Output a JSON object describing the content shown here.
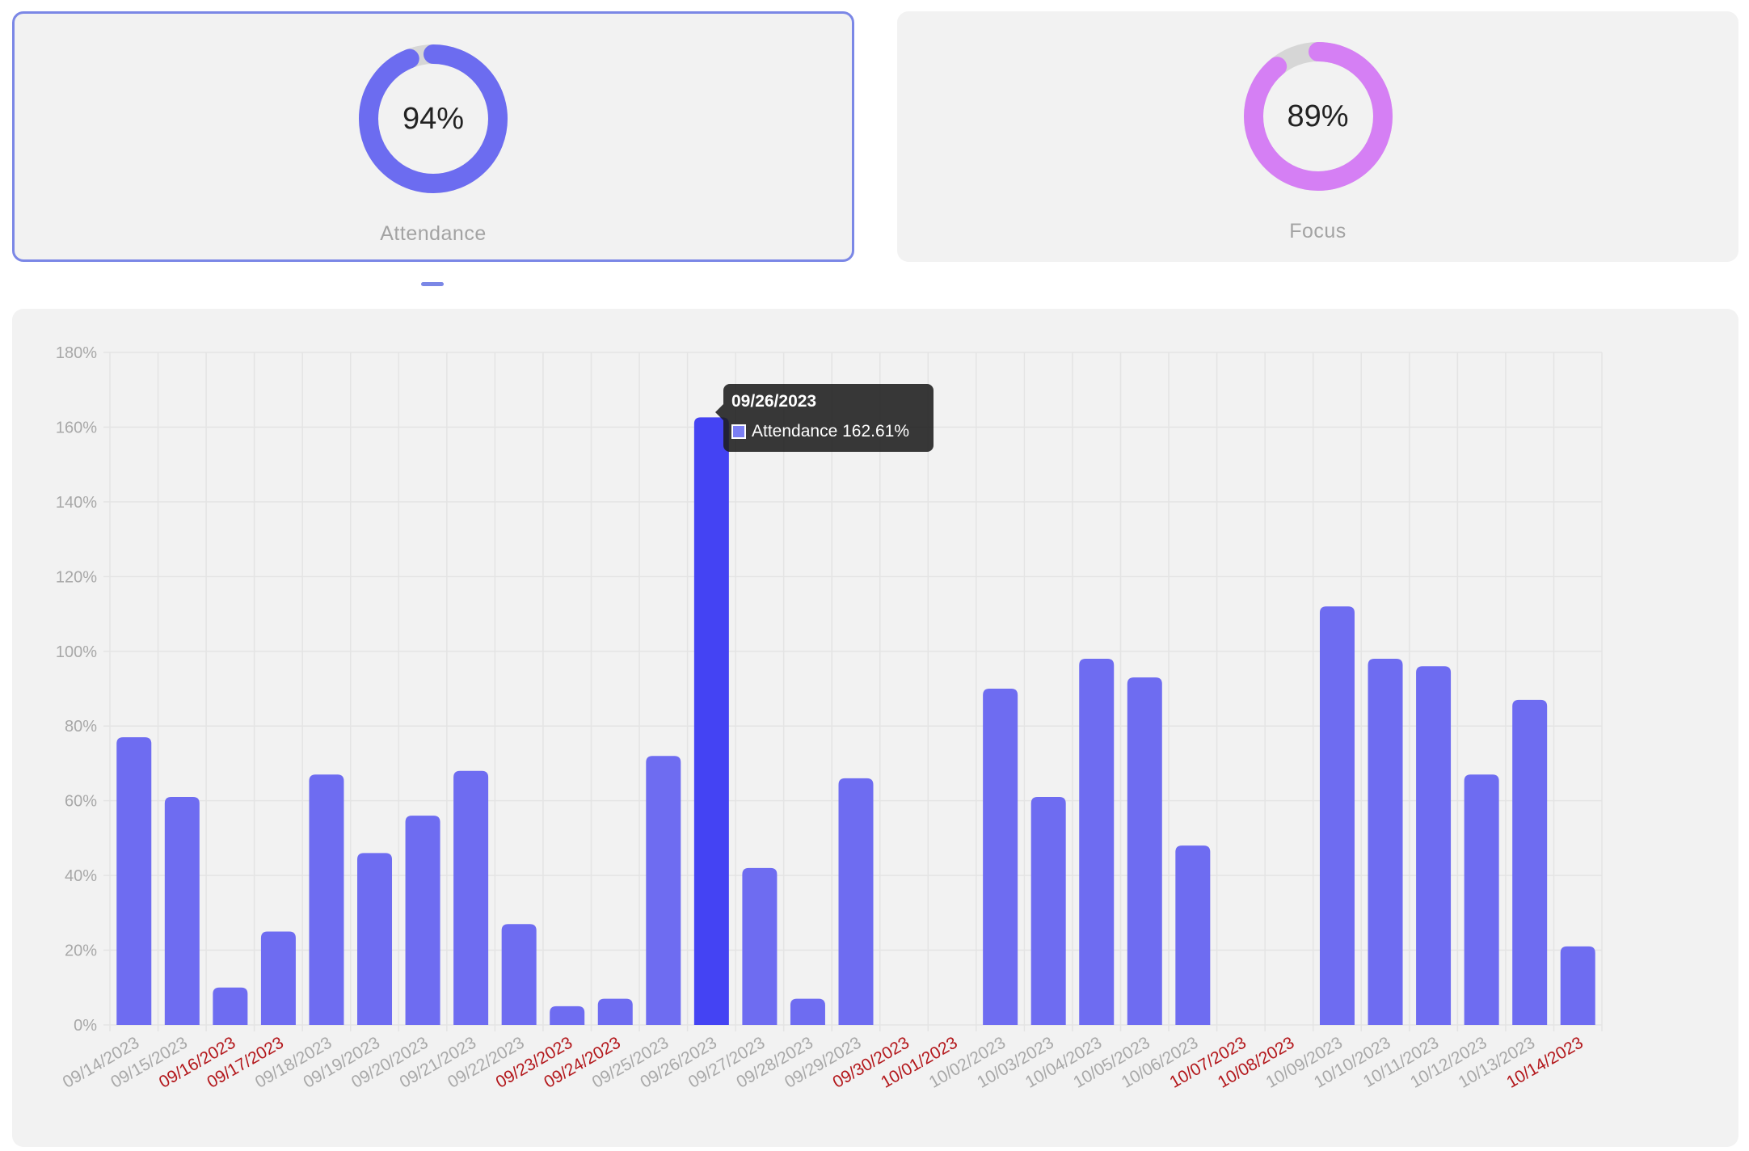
{
  "cards": [
    {
      "label": "Attendance",
      "value_text": "94%",
      "value": 94,
      "color": "#6c6cf0",
      "selected": true
    },
    {
      "label": "Focus",
      "value_text": "89%",
      "value": 89,
      "color": "#d57ff4",
      "selected": false
    }
  ],
  "colors": {
    "bar": "#6e6cf1",
    "bar_active": "#4443f3",
    "weekend_label": "#b3171b",
    "weekday_label": "#a8a8a8",
    "grid": "#e4e4e4",
    "card_bg": "#f2f2f2",
    "selected_border": "#7b87e6"
  },
  "tooltip": {
    "date": "09/26/2023",
    "series": "Attendance",
    "value_text": "162.61%",
    "line": "Attendance 162.61%"
  },
  "chart_data": {
    "type": "bar",
    "ylim": [
      0,
      180
    ],
    "yticks": [
      "0%",
      "20%",
      "40%",
      "60%",
      "80%",
      "100%",
      "120%",
      "140%",
      "160%",
      "180%"
    ],
    "grid": true,
    "legend": "none",
    "highlighted": "09/26/2023",
    "categories": [
      "09/14/2023",
      "09/15/2023",
      "09/16/2023",
      "09/17/2023",
      "09/18/2023",
      "09/19/2023",
      "09/20/2023",
      "09/21/2023",
      "09/22/2023",
      "09/23/2023",
      "09/24/2023",
      "09/25/2023",
      "09/26/2023",
      "09/27/2023",
      "09/28/2023",
      "09/29/2023",
      "09/30/2023",
      "10/01/2023",
      "10/02/2023",
      "10/03/2023",
      "10/04/2023",
      "10/05/2023",
      "10/06/2023",
      "10/07/2023",
      "10/08/2023",
      "10/09/2023",
      "10/10/2023",
      "10/11/2023",
      "10/12/2023",
      "10/13/2023",
      "10/14/2023"
    ],
    "weekend": [
      false,
      false,
      true,
      true,
      false,
      false,
      false,
      false,
      false,
      true,
      true,
      false,
      false,
      false,
      false,
      false,
      true,
      true,
      false,
      false,
      false,
      false,
      false,
      true,
      true,
      false,
      false,
      false,
      false,
      false,
      true
    ],
    "series": [
      {
        "name": "Attendance",
        "values": [
          77,
          61,
          10,
          25,
          67,
          46,
          56,
          68,
          27,
          5,
          7,
          72,
          162.61,
          42,
          7,
          66,
          0,
          0,
          90,
          61,
          98,
          93,
          48,
          0,
          0,
          112,
          98,
          96,
          67,
          87,
          21
        ]
      }
    ]
  }
}
